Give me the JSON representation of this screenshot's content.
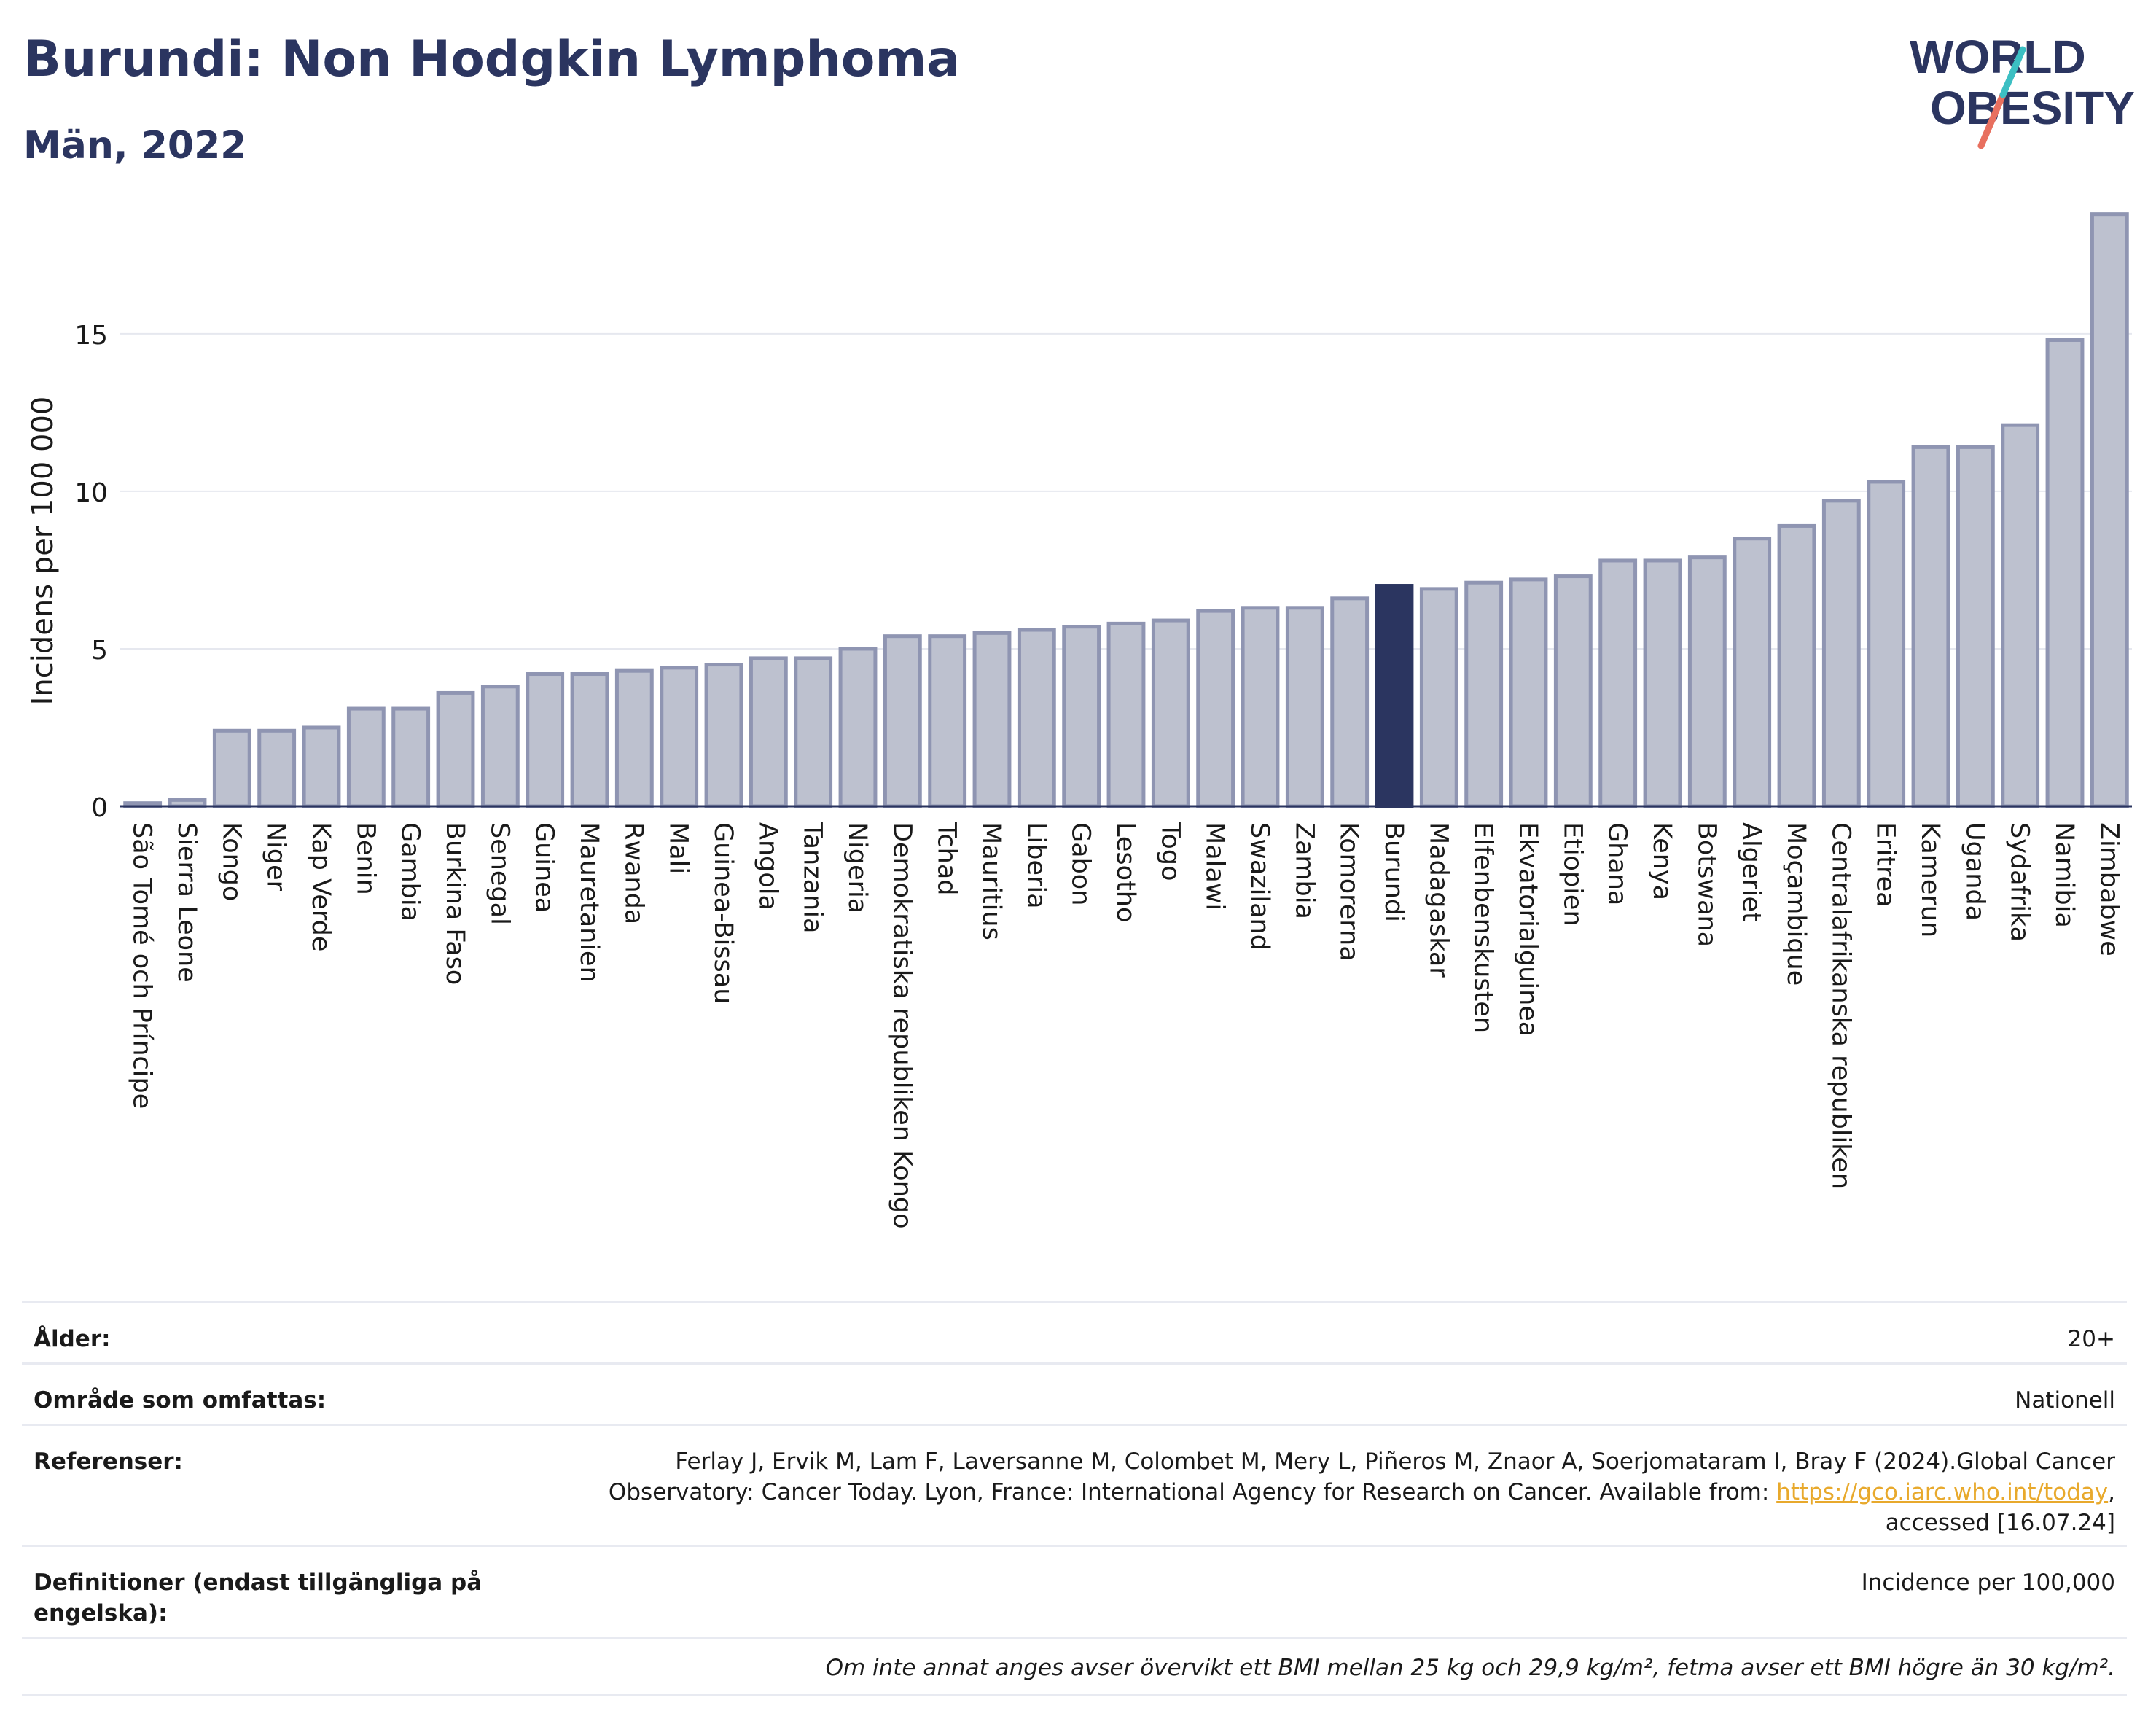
{
  "title": "Burundi: Non Hodgkin Lymphoma",
  "subtitle": "Män, 2022",
  "logo": {
    "line1": "WORLD",
    "line2": "OBESITY"
  },
  "colors": {
    "bar": "#bdc1cf",
    "bar_stroke": "#8f95b2",
    "highlight": "#2b3560",
    "title": "#2b3560",
    "logo_teal": "#3cbfc3",
    "logo_coral": "#e8705f"
  },
  "chart_data": {
    "type": "bar",
    "ylabel": "Incidens per 100 000",
    "ylim": [
      0,
      19
    ],
    "yticks": [
      0,
      5,
      10,
      15
    ],
    "grid": true,
    "highlight": "Burundi",
    "categories": [
      "São Tomé och Príncipe",
      "Sierra Leone",
      "Kongo",
      "Niger",
      "Kap Verde",
      "Benin",
      "Gambia",
      "Burkina Faso",
      "Senegal",
      "Guinea",
      "Mauretanien",
      "Rwanda",
      "Mali",
      "Guinea-Bissau",
      "Angola",
      "Tanzania",
      "Nigeria",
      "Demokratiska republiken Kongo",
      "Tchad",
      "Mauritius",
      "Liberia",
      "Gabon",
      "Lesotho",
      "Togo",
      "Malawi",
      "Swaziland",
      "Zambia",
      "Komorerna",
      "Burundi",
      "Madagaskar",
      "Elfenbenskusten",
      "Ekvatorialguinea",
      "Etiopien",
      "Ghana",
      "Kenya",
      "Botswana",
      "Algeriet",
      "Moçambique",
      "Centralafrikanska republiken",
      "Eritrea",
      "Kamerun",
      "Uganda",
      "Sydafrika",
      "Namibia",
      "Zimbabwe"
    ],
    "values": [
      0.1,
      0.2,
      2.4,
      2.4,
      2.5,
      3.1,
      3.1,
      3.6,
      3.8,
      4.2,
      4.2,
      4.3,
      4.4,
      4.5,
      4.7,
      4.7,
      5.0,
      5.4,
      5.4,
      5.5,
      5.6,
      5.7,
      5.8,
      5.9,
      6.2,
      6.3,
      6.3,
      6.6,
      7.0,
      6.9,
      7.1,
      7.2,
      7.3,
      7.8,
      7.8,
      7.9,
      8.5,
      8.9,
      9.7,
      10.3,
      11.4,
      11.4,
      12.1,
      14.8,
      18.8
    ]
  },
  "info": {
    "age_label": "Ålder:",
    "age_value": "20+",
    "area_label": "Område som omfattas:",
    "area_value": "Nationell",
    "refs_label": "Referenser:",
    "refs_text_1": "Ferlay J, Ervik M, Lam F, Laversanne M, Colombet M, Mery L, Piñeros M, Znaor A, Soerjomataram I, Bray F (2024).Global Cancer Observatory: Cancer Today. Lyon, France: International Agency for Research on Cancer. Available from: ",
    "refs_link": "https://gco.iarc.who.int/today",
    "refs_text_2": ", accessed [16.07.24]",
    "defs_label": "Definitioner (endast tillgängliga på engelska):",
    "defs_value": "Incidence per 100,000",
    "note": "Om inte annat anges avser övervikt ett BMI mellan 25 kg och 29,9 kg/m², fetma avser ett BMI högre än 30 kg/m²."
  }
}
